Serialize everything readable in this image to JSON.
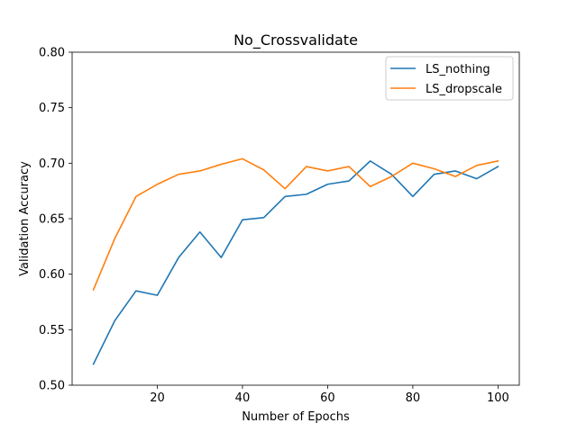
{
  "chart_data": {
    "type": "line",
    "title": "No_Crossvalidate",
    "xlabel": "Number of Epochs",
    "ylabel": "Validation Accuracy",
    "xlim": [
      0,
      105
    ],
    "ylim": [
      0.5,
      0.8
    ],
    "xticks": [
      20,
      40,
      60,
      80,
      100
    ],
    "yticks": [
      0.5,
      0.55,
      0.6,
      0.65,
      0.7,
      0.75,
      0.8
    ],
    "ytick_labels": [
      "0.50",
      "0.55",
      "0.60",
      "0.65",
      "0.70",
      "0.75",
      "0.80"
    ],
    "legend_position": "top-right",
    "x": [
      5,
      10,
      15,
      20,
      25,
      30,
      35,
      40,
      45,
      50,
      55,
      60,
      65,
      70,
      75,
      80,
      85,
      90,
      95,
      100
    ],
    "series": [
      {
        "name": "LS_nothing",
        "color": "#1f77b4",
        "values": [
          0.519,
          0.558,
          0.585,
          0.581,
          0.615,
          0.638,
          0.615,
          0.649,
          0.651,
          0.67,
          0.672,
          0.681,
          0.684,
          0.702,
          0.69,
          0.67,
          0.69,
          0.693,
          0.686,
          0.697
        ]
      },
      {
        "name": "LS_dropscale",
        "color": "#ff7f0e",
        "values": [
          0.586,
          0.632,
          0.67,
          0.681,
          0.69,
          0.693,
          0.699,
          0.704,
          0.694,
          0.677,
          0.697,
          0.693,
          0.697,
          0.679,
          0.688,
          0.7,
          0.695,
          0.688,
          0.698,
          0.702
        ]
      }
    ]
  }
}
